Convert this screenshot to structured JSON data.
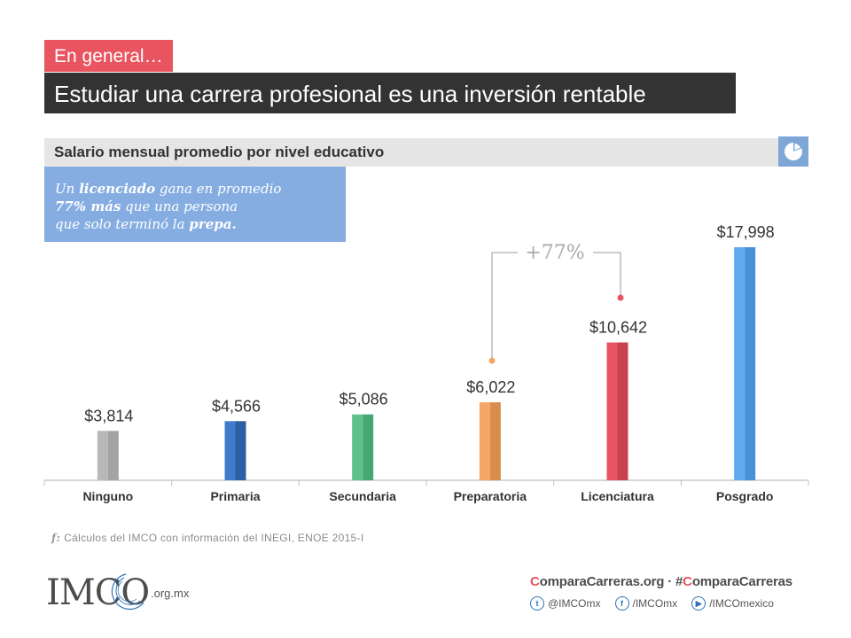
{
  "header": {
    "tag": "En general…",
    "headline": "Estudiar una carrera profesional es una inversión rentable",
    "subtitle": "Salario mensual promedio por nivel educativo"
  },
  "note": {
    "part1": "Un ",
    "bold1": "licenciado",
    "part2": " gana en promedio",
    "bold2": "77% más",
    "part3": " que una persona",
    "part4": "que solo terminó la ",
    "bold3": "prepa."
  },
  "annotation": {
    "label": "+77%"
  },
  "source": {
    "symbol": "f:",
    "text": "Cálculos del IMCO con información del INEGI, ENOE 2015-I"
  },
  "footer": {
    "logo_text": "IMCO",
    "logo_suffix": ".org.mx",
    "site_c": "C",
    "site_rest": "omparaCarreras.org",
    "sep": " · ",
    "hash_prefix": "#",
    "hash_c": "C",
    "hash_rest": "omparaCarreras",
    "twitter": "@IMCOmx",
    "facebook": "/IMCOmx",
    "youtube": "/IMCOmexico"
  },
  "chart_data": {
    "type": "bar",
    "title": "Salario mensual promedio por nivel educativo",
    "categories": [
      "Ninguno",
      "Primaria",
      "Secundaria",
      "Preparatoria",
      "Licenciatura",
      "Posgrado"
    ],
    "values": [
      3814,
      4566,
      5086,
      6022,
      10642,
      17998
    ],
    "value_labels": [
      "$3,814",
      "$4,566",
      "$5,086",
      "$6,022",
      "$10,642",
      "$17,998"
    ],
    "colors": [
      "#b8b8b8",
      "#3f7ccc",
      "#5ec28a",
      "#f3a766",
      "#e8545f",
      "#5fa9f0"
    ],
    "colors_dark": [
      "#a3a3a3",
      "#2c5fa6",
      "#45a874",
      "#d98c4c",
      "#c8434e",
      "#4690d6"
    ],
    "ylim": [
      0,
      20500
    ],
    "grid": false,
    "legend": "none"
  }
}
